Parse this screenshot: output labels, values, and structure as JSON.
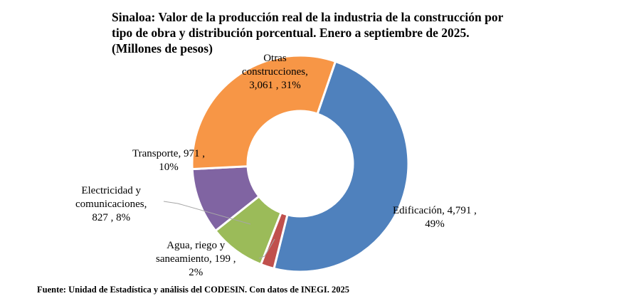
{
  "chart_data": {
    "type": "pie",
    "donut": true,
    "title_lines": [
      "Sinaloa: Valor de la producción real de la industria de la construcción por",
      "tipo de obra y distribución porcentual. Enero a septiembre de 2025.",
      "(Millones de pesos)"
    ],
    "slices": [
      {
        "name": "Edificación",
        "value": 4791,
        "percent": "49%",
        "color": "#4F81BD",
        "label_lines": [
          "Edificación, 4,791 ,",
          "49%"
        ]
      },
      {
        "name": "Agua, riego y saneamiento",
        "value": 199,
        "percent": "2%",
        "color": "#C0504D",
        "label_lines": [
          "Agua, riego y",
          "saneamiento, 199 ,",
          "2%"
        ]
      },
      {
        "name": "Electricidad y comunicaciones",
        "value": 827,
        "percent": "8%",
        "color": "#9BBB59",
        "label_lines": [
          "Electricidad y",
          "comunicaciones,",
          "827 , 8%"
        ]
      },
      {
        "name": "Transporte",
        "value": 971,
        "percent": "10%",
        "color": "#8064A2",
        "label_lines": [
          "Transporte, 971 ,",
          "10%"
        ]
      },
      {
        "name": "Otras construcciones",
        "value": 3061,
        "percent": "31%",
        "color": "#F79646",
        "label_lines": [
          "Otras",
          "construcciones,",
          "3,061 , 31%"
        ]
      }
    ],
    "legend": "none"
  },
  "source": "Fuente: Unidad de Estadística y análisis del CODESIN. Con datos de INEGI. 2025"
}
